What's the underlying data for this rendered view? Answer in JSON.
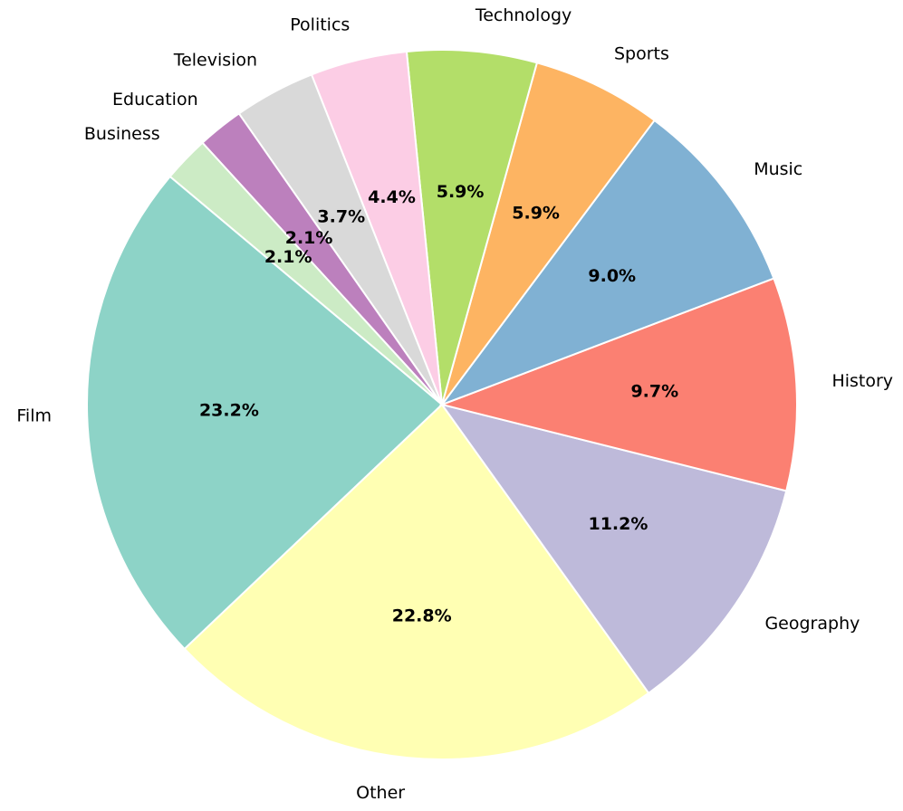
{
  "chart_data": {
    "type": "pie",
    "categories": [
      "Film",
      "Other",
      "Geography",
      "History",
      "Music",
      "Sports",
      "Technology",
      "Politics",
      "Television",
      "Education",
      "Business"
    ],
    "values": [
      23.2,
      22.8,
      11.2,
      9.7,
      9.0,
      5.9,
      5.9,
      4.4,
      3.7,
      2.1,
      2.1
    ],
    "value_labels": [
      "23.2%",
      "22.8%",
      "11.2%",
      "9.7%",
      "9.0%",
      "5.9%",
      "5.9%",
      "4.4%",
      "3.7%",
      "2.1%",
      "2.1%"
    ],
    "colors": [
      "#8dd3c7",
      "#ffffb3",
      "#bebada",
      "#fb8072",
      "#80b1d3",
      "#fdb462",
      "#b3de69",
      "#fccde5",
      "#d9d9d9",
      "#bc80bd",
      "#ccebc5"
    ],
    "startangle": 140
  }
}
